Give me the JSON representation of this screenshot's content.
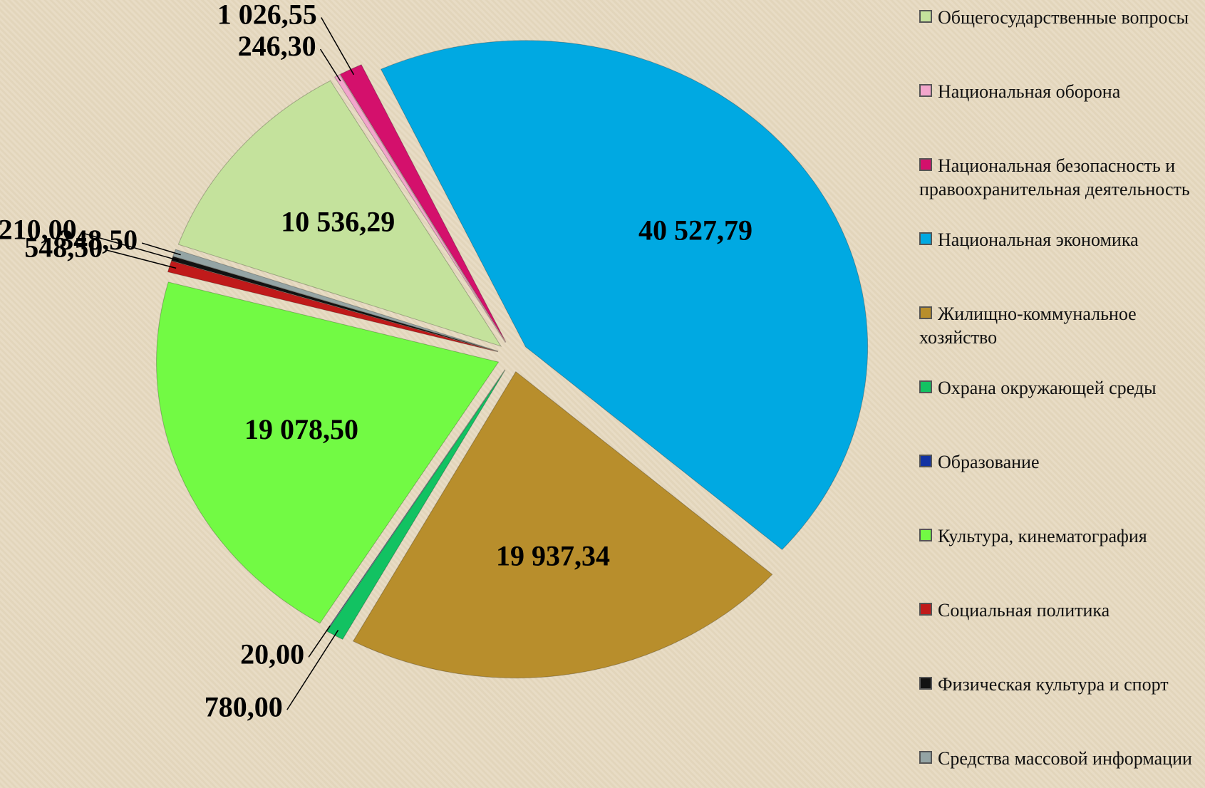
{
  "chart_data": {
    "type": "pie",
    "categories": [
      "Общегосударственные вопросы",
      "Национальная оборона",
      "Национальная безопасность и правоохранительная деятельность",
      "Национальная экономика",
      "Жилищно-коммунальное хозяйство",
      "Охрана окружающей среды",
      "Образование",
      "Культура, кинематография",
      "Социальная политика",
      "Физическая культура и спорт",
      "Средства массовой информации"
    ],
    "values": [
      10536.29,
      246.3,
      1026.55,
      40527.79,
      19937.34,
      780.0,
      20.0,
      19078.5,
      548.5,
      210.0,
      348.5
    ],
    "value_labels": [
      "10 536,29",
      "246,30",
      "1 026,55",
      "40 527,79",
      "19 937,34",
      "780,00",
      "20,00",
      "19 078,50",
      "548,50",
      "210,00",
      "348,50"
    ],
    "colors": [
      "#c4e29c",
      "#f2a6cc",
      "#d4106c",
      "#00a9e2",
      "#b88e2c",
      "#12c262",
      "#1232a2",
      "#72fa44",
      "#c01a1a",
      "#121212",
      "#94a4a4"
    ],
    "legend": "right"
  }
}
